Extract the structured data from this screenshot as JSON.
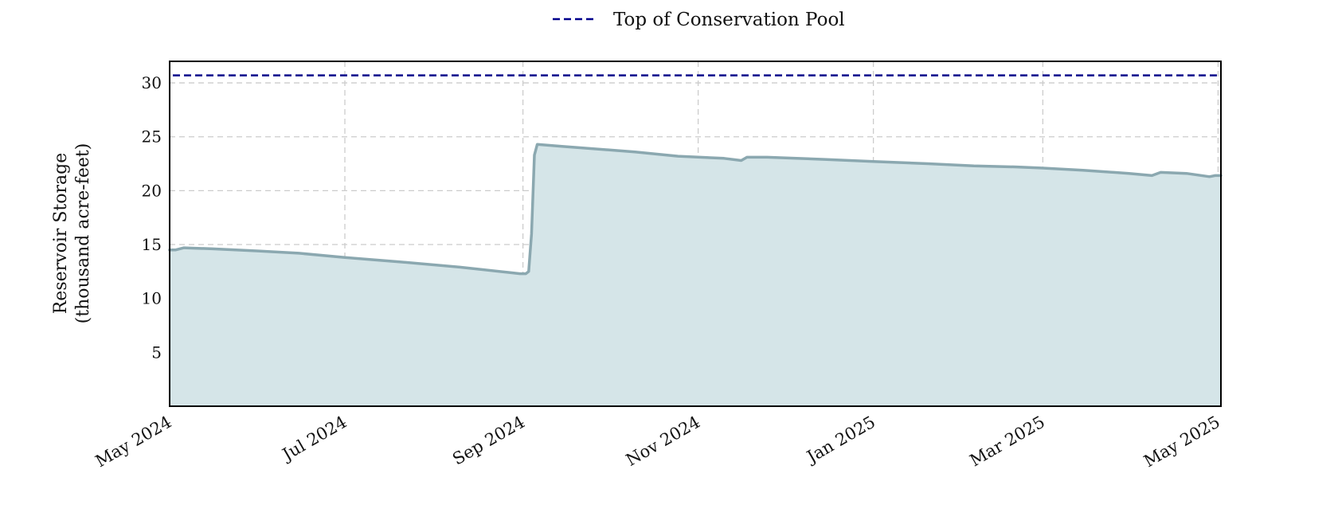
{
  "chart_data": {
    "type": "area",
    "title": "",
    "xlabel": "",
    "ylabel": [
      "Reservoir Storage",
      "(thousand acre-feet)"
    ],
    "xlim": [
      "2024-05-01",
      "2025-05-02"
    ],
    "ylim": [
      0,
      32
    ],
    "yticks": [
      5,
      10,
      15,
      20,
      25,
      30
    ],
    "xticks": [
      {
        "date": "2024-05-01",
        "label": "May 2024"
      },
      {
        "date": "2024-07-01",
        "label": "Jul 2024"
      },
      {
        "date": "2024-09-01",
        "label": "Sep 2024"
      },
      {
        "date": "2024-11-01",
        "label": "Nov 2024"
      },
      {
        "date": "2025-01-01",
        "label": "Jan 2025"
      },
      {
        "date": "2025-03-01",
        "label": "Mar 2025"
      },
      {
        "date": "2025-05-01",
        "label": "May 2025"
      }
    ],
    "grid": true,
    "legend": {
      "position": "top-center",
      "entries": [
        "Top of Conservation Pool"
      ]
    },
    "reference_lines": [
      {
        "name": "Top of Conservation Pool",
        "y": 30.7,
        "style": "dashed",
        "color": "#00008b"
      }
    ],
    "series": [
      {
        "color": "#8ba8b0",
        "fill": "#d5e5e8",
        "points": [
          [
            "2024-05-01",
            14.5
          ],
          [
            "2024-05-03",
            14.5
          ],
          [
            "2024-05-06",
            14.7
          ],
          [
            "2024-05-16",
            14.6
          ],
          [
            "2024-06-01",
            14.4
          ],
          [
            "2024-06-15",
            14.2
          ],
          [
            "2024-07-01",
            13.8
          ],
          [
            "2024-07-20",
            13.4
          ],
          [
            "2024-08-10",
            12.9
          ],
          [
            "2024-08-31",
            12.3
          ],
          [
            "2024-09-02",
            12.3
          ],
          [
            "2024-09-03",
            12.5
          ],
          [
            "2024-09-04",
            16.0
          ],
          [
            "2024-09-05",
            23.3
          ],
          [
            "2024-09-06",
            24.3
          ],
          [
            "2024-09-15",
            24.1
          ],
          [
            "2024-09-25",
            23.9
          ],
          [
            "2024-10-10",
            23.6
          ],
          [
            "2024-10-25",
            23.2
          ],
          [
            "2024-11-10",
            23.0
          ],
          [
            "2024-11-16",
            22.8
          ],
          [
            "2024-11-18",
            23.1
          ],
          [
            "2024-11-25",
            23.1
          ],
          [
            "2024-12-15",
            22.9
          ],
          [
            "2025-01-01",
            22.7
          ],
          [
            "2025-01-20",
            22.5
          ],
          [
            "2025-02-05",
            22.3
          ],
          [
            "2025-02-20",
            22.2
          ],
          [
            "2025-03-01",
            22.1
          ],
          [
            "2025-03-15",
            21.9
          ],
          [
            "2025-03-31",
            21.6
          ],
          [
            "2025-04-08",
            21.4
          ],
          [
            "2025-04-11",
            21.7
          ],
          [
            "2025-04-20",
            21.6
          ],
          [
            "2025-04-28",
            21.3
          ],
          [
            "2025-04-30",
            21.4
          ],
          [
            "2025-05-02",
            21.4
          ]
        ]
      }
    ]
  }
}
